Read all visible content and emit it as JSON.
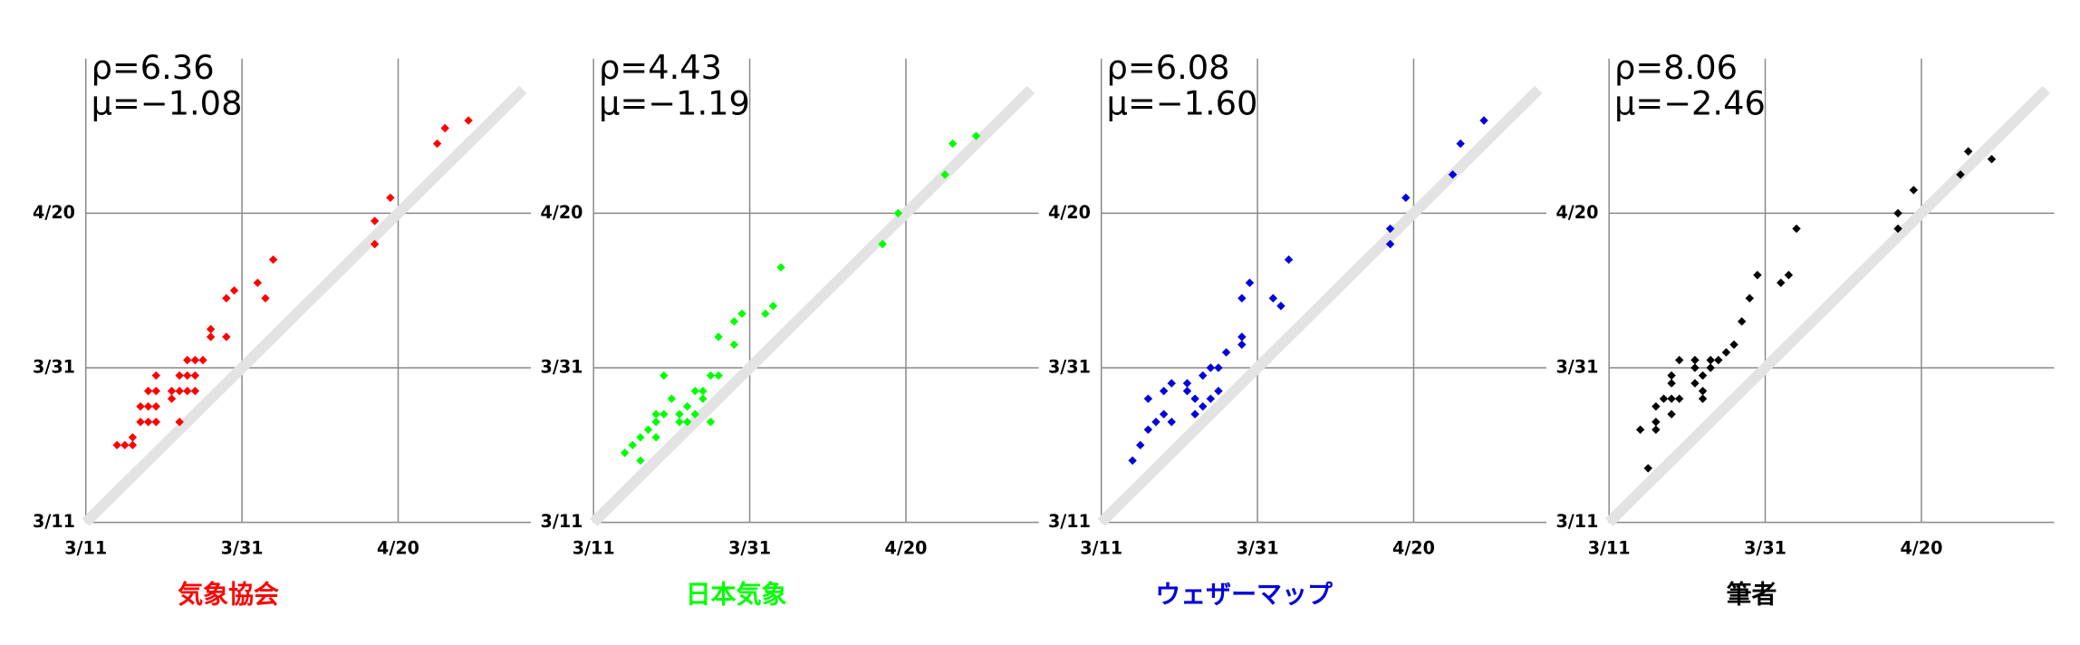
{
  "chart_data": [
    {
      "type": "scatter",
      "title": "気象協会",
      "color": "#ff0000",
      "annotations": [
        "ρ=6.36",
        "μ=−1.08"
      ],
      "x": [
        4,
        5,
        6,
        6,
        7,
        7,
        8,
        8,
        8,
        9,
        9,
        9,
        9,
        11,
        11,
        12,
        12,
        12,
        13,
        13,
        13,
        14,
        14,
        14,
        15,
        16,
        16,
        18,
        18,
        19,
        22,
        23,
        24,
        37,
        37,
        39,
        45,
        46,
        49
      ],
      "y": [
        10,
        10,
        10,
        11,
        13,
        15,
        13,
        15,
        17,
        13,
        15,
        17,
        19,
        17,
        16,
        13,
        17,
        19,
        17,
        19,
        21,
        17,
        19,
        21,
        21,
        24,
        25,
        24,
        29,
        30,
        31,
        29,
        34,
        36,
        39,
        42,
        49,
        51,
        52
      ],
      "xlim": [
        0,
        57
      ],
      "ylim": [
        0,
        60
      ],
      "xticks": [
        {
          "value": 0,
          "label": "3/11"
        },
        {
          "value": 20,
          "label": "3/31"
        },
        {
          "value": 40,
          "label": "4/20"
        }
      ],
      "yticks": [
        {
          "value": 0,
          "label": "3/11"
        },
        {
          "value": 20,
          "label": "3/31"
        },
        {
          "value": 40,
          "label": "4/20"
        }
      ],
      "grid": true
    },
    {
      "type": "scatter",
      "title": "日本気象",
      "color": "#00ff00",
      "annotations": [
        "ρ=4.43",
        "μ=−1.19"
      ],
      "x": [
        4,
        5,
        6,
        6,
        7,
        8,
        8,
        8,
        9,
        9,
        10,
        11,
        11,
        12,
        12,
        13,
        13,
        14,
        14,
        15,
        15,
        16,
        16,
        18,
        18,
        19,
        22,
        23,
        24,
        37,
        39,
        45,
        46,
        49
      ],
      "y": [
        9,
        10,
        8,
        11,
        12,
        11,
        13,
        14,
        14,
        19,
        16,
        13,
        14,
        13,
        15,
        14,
        17,
        16,
        17,
        13,
        19,
        19,
        24,
        23,
        26,
        27,
        27,
        28,
        33,
        36,
        40,
        45,
        49,
        50
      ],
      "xlim": [
        0,
        57
      ],
      "ylim": [
        0,
        60
      ],
      "xticks": [
        {
          "value": 0,
          "label": "3/11"
        },
        {
          "value": 20,
          "label": "3/31"
        },
        {
          "value": 40,
          "label": "4/20"
        }
      ],
      "yticks": [
        {
          "value": 0,
          "label": "3/11"
        },
        {
          "value": 20,
          "label": "3/31"
        },
        {
          "value": 40,
          "label": "4/20"
        }
      ],
      "grid": true
    },
    {
      "type": "scatter",
      "title": "ウェザーマップ",
      "color": "#0000dd",
      "annotations": [
        "ρ=6.08",
        "μ=−1.60"
      ],
      "x": [
        4,
        5,
        6,
        6,
        7,
        8,
        8,
        9,
        9,
        11,
        11,
        12,
        12,
        13,
        13,
        14,
        14,
        15,
        15,
        16,
        18,
        18,
        18,
        19,
        22,
        23,
        24,
        37,
        37,
        39,
        45,
        46,
        49
      ],
      "y": [
        8,
        10,
        12,
        16,
        13,
        14,
        17,
        13,
        18,
        17,
        18,
        16,
        14,
        19,
        15,
        16,
        20,
        17,
        20,
        22,
        23,
        24,
        29,
        31,
        29,
        28,
        34,
        36,
        38,
        42,
        45,
        49,
        52
      ],
      "xlim": [
        0,
        57
      ],
      "ylim": [
        0,
        60
      ],
      "xticks": [
        {
          "value": 0,
          "label": "3/11"
        },
        {
          "value": 20,
          "label": "3/31"
        },
        {
          "value": 40,
          "label": "4/20"
        }
      ],
      "yticks": [
        {
          "value": 0,
          "label": "3/11"
        },
        {
          "value": 20,
          "label": "3/31"
        },
        {
          "value": 40,
          "label": "4/20"
        }
      ],
      "grid": true
    },
    {
      "type": "scatter",
      "title": "筆者",
      "color": "#000000",
      "annotations": [
        "ρ=8.06",
        "μ=−2.46"
      ],
      "x": [
        5,
        4,
        6,
        6,
        6,
        7,
        8,
        8,
        8,
        8,
        9,
        9,
        11,
        11,
        11,
        12,
        12,
        12,
        13,
        13,
        14,
        15,
        16,
        17,
        18,
        19,
        22,
        23,
        24,
        37,
        37,
        39,
        45,
        46,
        49
      ],
      "y": [
        7,
        12,
        12,
        13,
        15,
        16,
        14,
        16,
        18,
        19,
        16,
        21,
        18,
        20,
        21,
        16,
        17,
        19,
        20,
        21,
        21,
        22,
        23,
        26,
        29,
        32,
        31,
        32,
        38,
        38,
        40,
        43,
        45,
        48,
        47
      ],
      "xlim": [
        0,
        57
      ],
      "ylim": [
        0,
        60
      ],
      "xticks": [
        {
          "value": 0,
          "label": "3/11"
        },
        {
          "value": 20,
          "label": "3/31"
        },
        {
          "value": 40,
          "label": "4/20"
        }
      ],
      "yticks": [
        {
          "value": 0,
          "label": "3/11"
        },
        {
          "value": 20,
          "label": "3/31"
        },
        {
          "value": 40,
          "label": "4/20"
        }
      ],
      "grid": true
    }
  ]
}
